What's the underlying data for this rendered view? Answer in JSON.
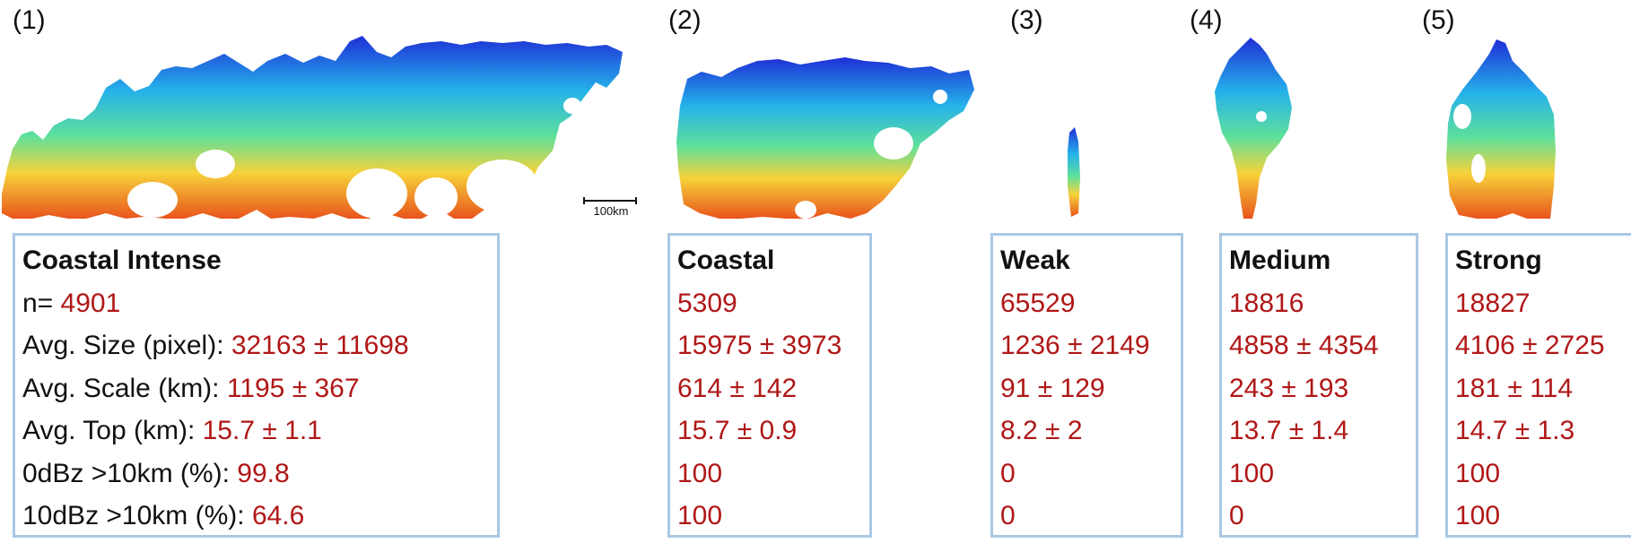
{
  "scale_bar": {
    "label": "100km"
  },
  "clusters": [
    {
      "label": "(1)",
      "title": "Coastal Intense",
      "rows": [
        {
          "label": "n= ",
          "value": "4901"
        },
        {
          "label": "Avg. Size (pixel): ",
          "value": "32163 ± 11698"
        },
        {
          "label": "Avg. Scale (km): ",
          "value": "1195 ± 367"
        },
        {
          "label": "Avg. Top (km): ",
          "value": "15.7 ± 1.1"
        },
        {
          "label": "0dBz >10km (%): ",
          "value": "99.8"
        },
        {
          "label": "10dBz >10km (%): ",
          "value": "64.6"
        }
      ]
    },
    {
      "label": "(2)",
      "title": "Coastal",
      "rows": [
        {
          "value": "5309"
        },
        {
          "value": "15975 ± 3973"
        },
        {
          "value": "614 ± 142"
        },
        {
          "value": "15.7 ± 0.9"
        },
        {
          "value": "100"
        },
        {
          "value": "100"
        }
      ]
    },
    {
      "label": "(3)",
      "title": "Weak",
      "rows": [
        {
          "value": "65529"
        },
        {
          "value": "1236 ± 2149"
        },
        {
          "value": "91 ± 129"
        },
        {
          "value": "8.2 ± 2"
        },
        {
          "value": "0"
        },
        {
          "value": "0"
        }
      ]
    },
    {
      "label": "(4)",
      "title": "Medium",
      "rows": [
        {
          "value": "18816"
        },
        {
          "value": "4858 ± 4354"
        },
        {
          "value": "243 ± 193"
        },
        {
          "value": "13.7 ± 1.4"
        },
        {
          "value": "100"
        },
        {
          "value": "0"
        }
      ]
    },
    {
      "label": "(5)",
      "title": "Strong",
      "rows": [
        {
          "value": "18827"
        },
        {
          "value": "4106 ± 2725"
        },
        {
          "value": "181 ± 114"
        },
        {
          "value": "14.7 ± 1.3"
        },
        {
          "value": "100"
        },
        {
          "value": "100"
        }
      ]
    }
  ]
}
